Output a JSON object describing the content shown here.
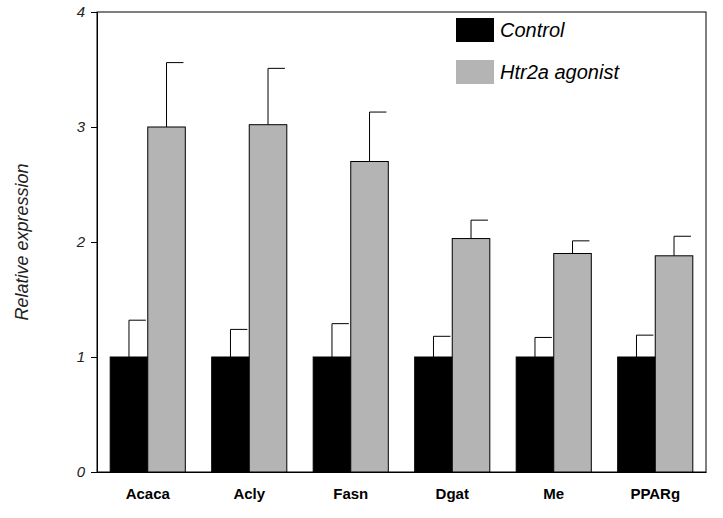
{
  "chart_data": {
    "type": "bar",
    "categories": [
      "Acaca",
      "Acly",
      "Fasn",
      "Dgat",
      "Me",
      "PPARg"
    ],
    "series": [
      {
        "name": "Control",
        "color": "#000000",
        "values": [
          1,
          1,
          1,
          1,
          1,
          1
        ],
        "errors": [
          0.32,
          0.24,
          0.29,
          0.18,
          0.17,
          0.19
        ]
      },
      {
        "name": "Htr2a agonist",
        "color": "#b4b4b4",
        "values": [
          3.0,
          3.02,
          2.7,
          2.03,
          1.9,
          1.88
        ],
        "errors": [
          0.56,
          0.49,
          0.43,
          0.16,
          0.11,
          0.17
        ]
      }
    ],
    "y_label": "Relative expression",
    "ylim": [
      0,
      4
    ],
    "yticks": [
      0,
      1,
      2,
      3,
      4
    ],
    "legend": "top-right",
    "grid": false
  }
}
